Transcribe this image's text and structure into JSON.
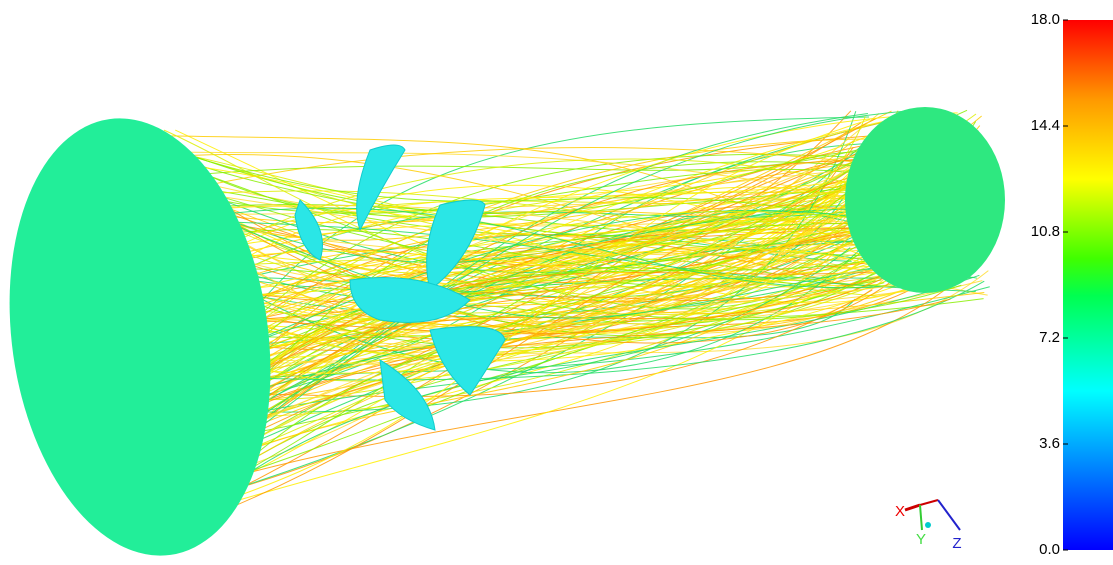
{
  "colorbar": {
    "range": [
      0,
      18
    ],
    "ticks": [
      {
        "value": 0,
        "label": "0.0"
      },
      {
        "value": 3.6,
        "label": "3.6"
      },
      {
        "value": 7.2,
        "label": "7.2"
      },
      {
        "value": 10.8,
        "label": "10.8"
      },
      {
        "value": 14.4,
        "label": "14.4"
      },
      {
        "value": 18,
        "label": "18.0"
      }
    ]
  },
  "axes_triad": {
    "x": "X",
    "y": "Y",
    "z": "Z"
  }
}
